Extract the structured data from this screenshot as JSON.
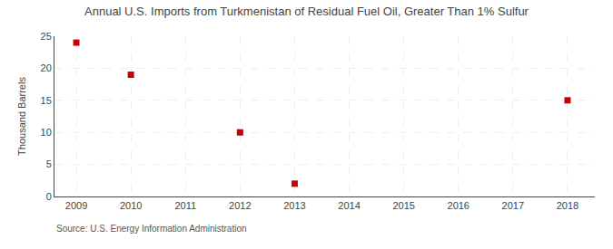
{
  "chart_data": {
    "type": "scatter",
    "title": "Annual U.S. Imports from Turkmenistan of Residual Fuel Oil, Greater Than 1% Sulfur",
    "y_label": "Thousand Barrels",
    "annotations": [
      "Source: U.S. Energy Information Administration"
    ],
    "x": [
      2009,
      2010,
      2012,
      2013,
      2018
    ],
    "values": [
      24,
      19,
      10,
      2,
      15
    ],
    "color": "#CC0000",
    "marker": "square",
    "xlim": [
      2008.6,
      2018.5
    ],
    "ylim": [
      0,
      25
    ],
    "xticks": [
      2009,
      2010,
      2011,
      2012,
      2013,
      2014,
      2015,
      2016,
      2017,
      2018
    ],
    "yticks": [
      0,
      5,
      10,
      15,
      20,
      25
    ],
    "grid": true
  }
}
